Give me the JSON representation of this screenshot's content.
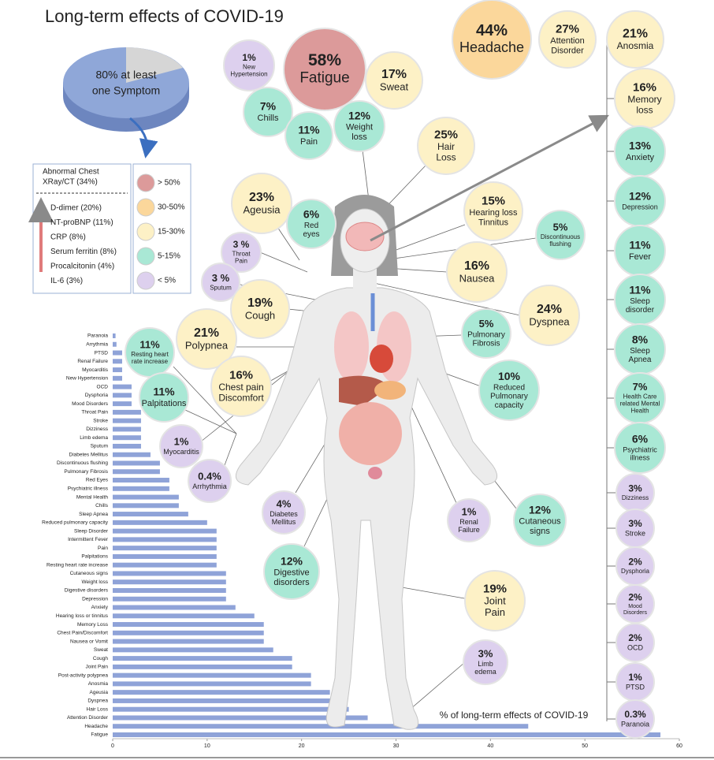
{
  "title": "Long-term effects of COVID-19",
  "pie": {
    "text": [
      "80% at least",
      "one Symptom"
    ]
  },
  "box": {
    "header": [
      "Abnormal Chest",
      "XRay/CT (34%)"
    ],
    "items": [
      "D-dimer (20%)",
      "NT-proBNP (11%)",
      "CRP (8%)",
      "Serum ferritin (8%)",
      "Procalcitonin (4%)",
      "IL-6 (3%)"
    ]
  },
  "legend": [
    {
      "label": "> 50%",
      "color": "#dc9a9a"
    },
    {
      "label": "30-50%",
      "color": "#fbd79b"
    },
    {
      "label": "15-30%",
      "color": "#fdf1c6"
    },
    {
      "label": "5-15%",
      "color": "#a9e8d5"
    },
    {
      "label": "< 5%",
      "color": "#ddd0ee"
    }
  ],
  "bubbles": [
    {
      "value": "58%",
      "name": [
        "Fatigue"
      ],
      "color": "#dc9a9a"
    },
    {
      "value": "1%",
      "name": [
        "New",
        "Hypertension"
      ],
      "color": "#ddd0ee"
    },
    {
      "value": "17%",
      "name": [
        "Sweat"
      ],
      "color": "#fdf1c6"
    },
    {
      "value": "7%",
      "name": [
        "Chills"
      ],
      "color": "#a9e8d5"
    },
    {
      "value": "11%",
      "name": [
        "Pain"
      ],
      "color": "#a9e8d5"
    },
    {
      "value": "12%",
      "name": [
        "Weight",
        "loss"
      ],
      "color": "#a9e8d5"
    },
    {
      "value": "44%",
      "name": [
        "Headache"
      ],
      "color": "#fbd79b"
    },
    {
      "value": "27%",
      "name": [
        "Attention",
        "Disorder"
      ],
      "color": "#fdf1c6"
    },
    {
      "value": "25%",
      "name": [
        "Hair",
        "Loss"
      ],
      "color": "#fdf1c6"
    },
    {
      "value": "23%",
      "name": [
        "Ageusia"
      ],
      "color": "#fdf1c6"
    },
    {
      "value": "6%",
      "name": [
        "Red",
        "eyes"
      ],
      "color": "#a9e8d5"
    },
    {
      "value": "3 %",
      "name": [
        "Throat",
        "Pain"
      ],
      "color": "#ddd0ee"
    },
    {
      "value": "3 %",
      "name": [
        "Sputum"
      ],
      "color": "#ddd0ee"
    },
    {
      "value": "15%",
      "name": [
        "Hearing loss",
        "Tinnitus"
      ],
      "color": "#fdf1c6"
    },
    {
      "value": "5%",
      "name": [
        "Discontinuous",
        "flushing"
      ],
      "color": "#a9e8d5"
    },
    {
      "value": "16%",
      "name": [
        "Nausea"
      ],
      "color": "#fdf1c6"
    },
    {
      "value": "19%",
      "name": [
        "Cough"
      ],
      "color": "#fdf1c6"
    },
    {
      "value": "24%",
      "name": [
        "Dyspnea"
      ],
      "color": "#fdf1c6"
    },
    {
      "value": "21%",
      "name": [
        "Polypnea"
      ],
      "color": "#fdf1c6"
    },
    {
      "value": "5%",
      "name": [
        "Pulmonary",
        "Fibrosis"
      ],
      "color": "#a9e8d5"
    },
    {
      "value": "11%",
      "name": [
        "Resting heart",
        "rate increase"
      ],
      "color": "#a9e8d5"
    },
    {
      "value": "16%",
      "name": [
        "Chest pain",
        "Discomfort"
      ],
      "color": "#fdf1c6"
    },
    {
      "value": "10%",
      "name": [
        "Reduced",
        "Pulmonary",
        "capacity"
      ],
      "color": "#a9e8d5"
    },
    {
      "value": "11%",
      "name": [
        "Palpitations"
      ],
      "color": "#a9e8d5"
    },
    {
      "value": "1%",
      "name": [
        "Myocarditis"
      ],
      "color": "#ddd0ee"
    },
    {
      "value": "0.4%",
      "name": [
        "Arrhythmia"
      ],
      "color": "#ddd0ee"
    },
    {
      "value": "4%",
      "name": [
        "Diabetes",
        "Mellitus"
      ],
      "color": "#ddd0ee"
    },
    {
      "value": "1%",
      "name": [
        "Renal",
        "Failure"
      ],
      "color": "#ddd0ee"
    },
    {
      "value": "12%",
      "name": [
        "Cutaneous",
        "signs"
      ],
      "color": "#a9e8d5"
    },
    {
      "value": "12%",
      "name": [
        "Digestive",
        "disorders"
      ],
      "color": "#a9e8d5"
    },
    {
      "value": "19%",
      "name": [
        "Joint",
        "Pain"
      ],
      "color": "#fdf1c6"
    },
    {
      "value": "3%",
      "name": [
        "Limb",
        "edema"
      ],
      "color": "#ddd0ee"
    },
    {
      "value": "21%",
      "name": [
        "Anosmia"
      ],
      "color": "#fdf1c6"
    },
    {
      "value": "16%",
      "name": [
        "Memory",
        "loss"
      ],
      "color": "#fdf1c6"
    },
    {
      "value": "13%",
      "name": [
        "Anxiety"
      ],
      "color": "#a9e8d5"
    },
    {
      "value": "12%",
      "name": [
        "Depression"
      ],
      "color": "#a9e8d5"
    },
    {
      "value": "11%",
      "name": [
        "Fever"
      ],
      "color": "#a9e8d5"
    },
    {
      "value": "11%",
      "name": [
        "Sleep",
        "disorder"
      ],
      "color": "#a9e8d5"
    },
    {
      "value": "8%",
      "name": [
        "Sleep",
        "Apnea"
      ],
      "color": "#a9e8d5"
    },
    {
      "value": "7%",
      "name": [
        "Health Care",
        "related Mental",
        "Health"
      ],
      "color": "#a9e8d5"
    },
    {
      "value": "6%",
      "name": [
        "Psychiatric",
        "illness"
      ],
      "color": "#a9e8d5"
    },
    {
      "value": "3%",
      "name": [
        "Dizziness"
      ],
      "color": "#ddd0ee"
    },
    {
      "value": "3%",
      "name": [
        "Stroke"
      ],
      "color": "#ddd0ee"
    },
    {
      "value": "2%",
      "name": [
        "Dysphoria"
      ],
      "color": "#ddd0ee"
    },
    {
      "value": "2%",
      "name": [
        "Mood",
        "Disorders"
      ],
      "color": "#ddd0ee"
    },
    {
      "value": "2%",
      "name": [
        "OCD"
      ],
      "color": "#ddd0ee"
    },
    {
      "value": "1%",
      "name": [
        "PTSD"
      ],
      "color": "#ddd0ee"
    },
    {
      "value": "0.3%",
      "name": [
        "Paranoia"
      ],
      "color": "#ddd0ee"
    }
  ],
  "chart_data": {
    "type": "bar",
    "orientation": "horizontal",
    "color": "#8fa3d8",
    "x_label": "% of long-term effects of COVID-19",
    "categories": [
      "Paranoia",
      "Arrythmia",
      "PTSD",
      "Renal Failure",
      "Myocarditis",
      "New Hypertension",
      "OCD",
      "Dysphoria",
      "Mood Disorders",
      "Throat Pain",
      "Stroke",
      "Dizziness",
      "Limb edema",
      "Sputum",
      "Diabetes Mellitus",
      "Discontinuous flushing",
      "Pulmonary Fibrosis",
      "Red Eyes",
      "Psychiatric illness",
      "Mental Health",
      "Chills",
      "Sleep Apnea",
      "Reduced pulmonary capacity",
      "Sleep Disorder",
      "Intermittent Fever",
      "Pain",
      "Palpitations",
      "Resting heart rate increase",
      "Cutaneous signs",
      "Weight loss",
      "Digestive disorders",
      "Depression",
      "Anxiety",
      "Hearing loss or tinnitus",
      "Memory Loss",
      "Chest Pain/Discomfort",
      "Nausea or Vomit",
      "Sweat",
      "Cough",
      "Joint Pain",
      "Post-activity polypnea",
      "Anosmia",
      "Ageusia",
      "Dyspnea",
      "Hair Loss",
      "Attention Disorder",
      "Headache",
      "Fatigue"
    ],
    "values": [
      0.3,
      0.4,
      1,
      1,
      1,
      1,
      2,
      2,
      2,
      3,
      3,
      3,
      3,
      3,
      4,
      5,
      5,
      6,
      6,
      7,
      7,
      8,
      10,
      11,
      11,
      11,
      11,
      11,
      12,
      12,
      12,
      12,
      13,
      15,
      16,
      16,
      16,
      17,
      19,
      19,
      21,
      21,
      23,
      24,
      25,
      27,
      44,
      58
    ],
    "xlim": [
      0,
      60
    ],
    "xticks": [
      0,
      10,
      20,
      30,
      40,
      50,
      60
    ]
  }
}
